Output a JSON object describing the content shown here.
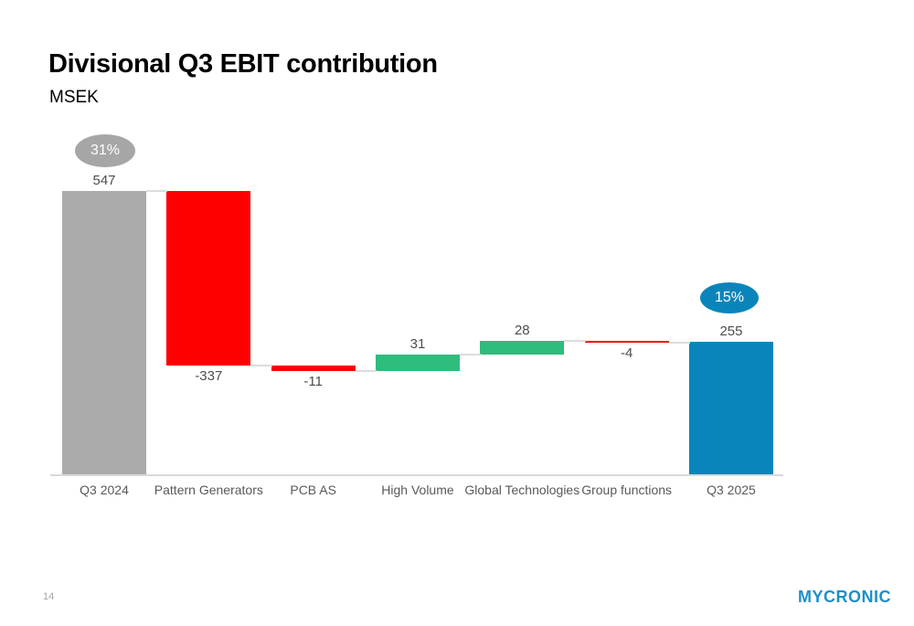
{
  "header": {
    "title": "Divisional Q3 EBIT contribution",
    "subtitle": "MSEK"
  },
  "footer": {
    "page_number": "14",
    "logo_text": "MYCRONIC"
  },
  "chart_data": {
    "type": "bar",
    "subtype": "waterfall",
    "title": "Divisional Q3 EBIT contribution",
    "ylabel": "MSEK",
    "ylim": [
      0,
      620
    ],
    "grid": false,
    "legend": false,
    "categories": [
      "Q3 2024",
      "Pattern Generators",
      "PCB AS",
      "High Volume",
      "Global Technologies",
      "Group functions",
      "Q3 2025"
    ],
    "values": [
      547,
      -337,
      -11,
      31,
      28,
      -4,
      255
    ],
    "steps": [
      {
        "category": "Q3 2024",
        "value": 547,
        "type": "total",
        "color": "gray",
        "label": "547",
        "label_pos": "above"
      },
      {
        "category": "Pattern Generators",
        "value": -337,
        "type": "delta",
        "color": "red",
        "label": "-337",
        "label_pos": "below"
      },
      {
        "category": "PCB AS",
        "value": -11,
        "type": "delta",
        "color": "red",
        "label": "-11",
        "label_pos": "below"
      },
      {
        "category": "High Volume",
        "value": 31,
        "type": "delta",
        "color": "green",
        "label": "31",
        "label_pos": "above"
      },
      {
        "category": "Global Technologies",
        "value": 28,
        "type": "delta",
        "color": "green",
        "label": "28",
        "label_pos": "above"
      },
      {
        "category": "Group functions",
        "value": -4,
        "type": "delta",
        "color": "red",
        "label": "-4",
        "label_pos": "below"
      },
      {
        "category": "Q3 2025",
        "value": 255,
        "type": "total",
        "color": "blue",
        "label": "255",
        "label_pos": "above"
      }
    ],
    "badges": [
      {
        "label": "31%",
        "color": "#a6a6a6",
        "attached_to": "Q3 2024"
      },
      {
        "label": "15%",
        "color": "#0a85bb",
        "attached_to": "Q3 2025"
      }
    ],
    "colors": {
      "gray": "#ababab",
      "red": "#ff0000",
      "green": "#2ebd7c",
      "blue": "#0a85bb",
      "connector": "#dcdcdc",
      "axis": "#d9d9d9",
      "label_text": "#4d4d4d",
      "logo_blue": "#1e8fc8"
    }
  }
}
